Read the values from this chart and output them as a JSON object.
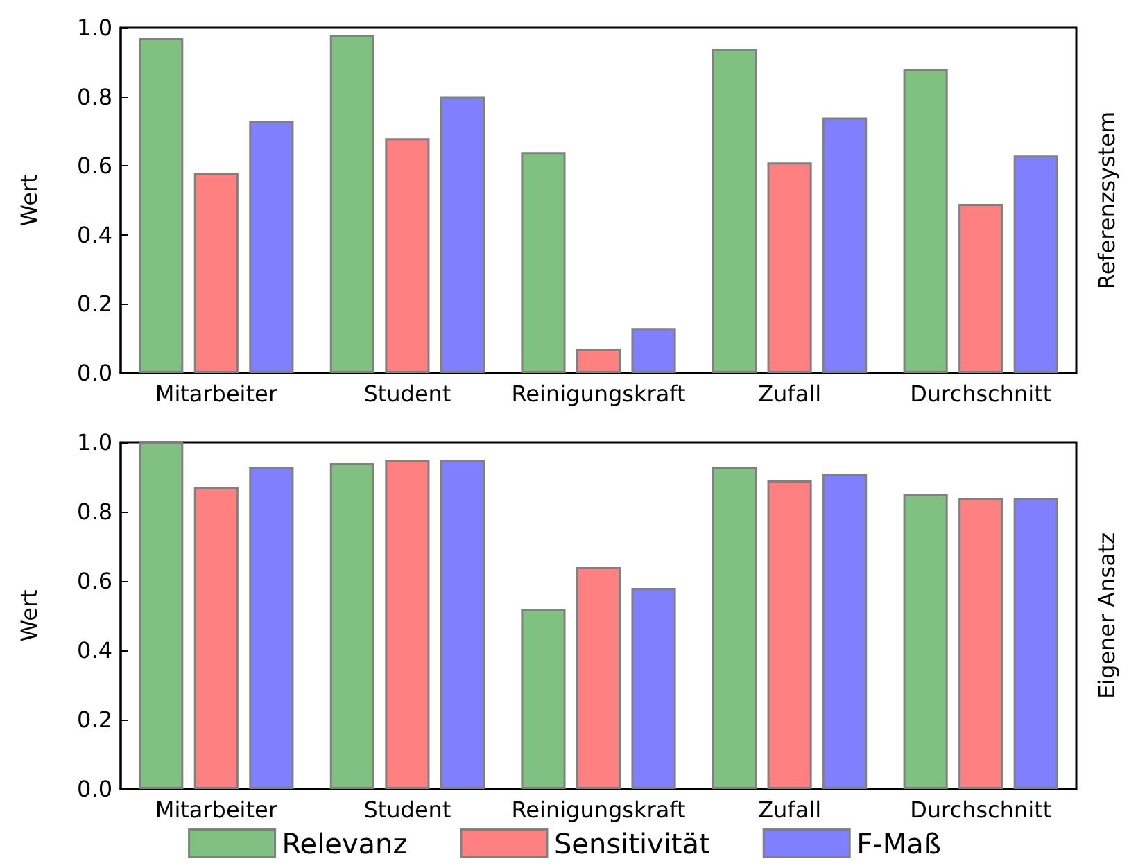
{
  "chart_data": [
    {
      "type": "bar",
      "y2label": "Referenzsystem",
      "ylabel": "Wert",
      "categories": [
        "Mitarbeiter",
        "Student",
        "Reinigungskraft",
        "Zufall",
        "Durchschnitt"
      ],
      "series": [
        {
          "color": "#80c080",
          "values": [
            0.97,
            0.98,
            0.64,
            0.94,
            0.88
          ]
        },
        {
          "color": "#ff8080",
          "values": [
            0.58,
            0.68,
            0.07,
            0.61,
            0.49
          ]
        },
        {
          "color": "#8080ff",
          "values": [
            0.73,
            0.8,
            0.13,
            0.74,
            0.63
          ]
        }
      ],
      "ylim": [
        0,
        1
      ],
      "yticks": [
        {
          "value": 0,
          "label": "0.0"
        },
        {
          "value": 0.2,
          "label": "0.2"
        },
        {
          "value": 0.4,
          "label": "0.4"
        },
        {
          "value": 0.6,
          "label": "0.6"
        },
        {
          "value": 0.8,
          "label": "0.8"
        },
        {
          "value": 1,
          "label": "1.0"
        }
      ],
      "legend": false
    },
    {
      "type": "bar",
      "y2label": "Eigener Ansatz",
      "ylabel": "Wert",
      "categories": [
        "Mitarbeiter",
        "Student",
        "Reinigungskraft",
        "Zufall",
        "Durchschnitt"
      ],
      "series": [
        {
          "name": "Relevanz",
          "color": "#80c080",
          "values": [
            1.0,
            0.94,
            0.52,
            0.93,
            0.85
          ]
        },
        {
          "name": "Sensitivität",
          "color": "#ff8080",
          "values": [
            0.87,
            0.95,
            0.64,
            0.89,
            0.84
          ]
        },
        {
          "name": "F-Maß",
          "color": "#8080ff",
          "values": [
            0.93,
            0.95,
            0.58,
            0.91,
            0.84
          ]
        }
      ],
      "ylim": [
        0,
        1
      ],
      "yticks": [
        {
          "value": 0,
          "label": "0.0"
        },
        {
          "value": 0.2,
          "label": "0.2"
        },
        {
          "value": 0.4,
          "label": "0.4"
        },
        {
          "value": 0.6,
          "label": "0.6"
        },
        {
          "value": 0.8,
          "label": "0.8"
        },
        {
          "value": 1,
          "label": "1.0"
        }
      ],
      "legend": "bottom"
    }
  ]
}
